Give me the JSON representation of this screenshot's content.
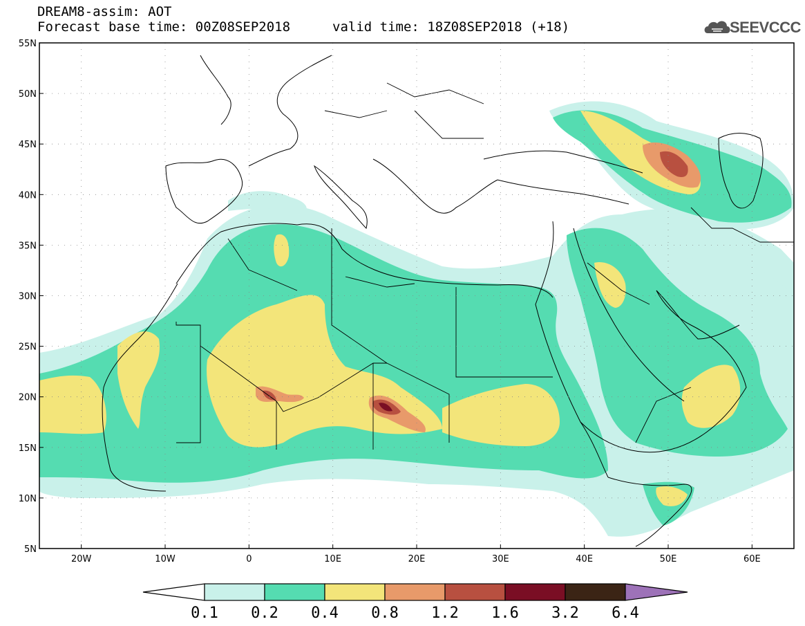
{
  "header": {
    "title": "DREAM8-assim: AOT",
    "base_time": "Forecast base time: 00Z08SEP2018",
    "valid_time": "valid time: 18Z08SEP2018 (+18)",
    "logo_text": "SEEVCCC"
  },
  "map": {
    "lon_range": [
      -25,
      65
    ],
    "lat_range": [
      5,
      55
    ],
    "lat_ticks": [
      "55N",
      "50N",
      "45N",
      "40N",
      "35N",
      "30N",
      "25N",
      "20N",
      "15N",
      "10N",
      "5N"
    ],
    "lon_ticks": [
      "20W",
      "10W",
      "0",
      "10E",
      "20E",
      "30E",
      "40E",
      "50E",
      "60E"
    ]
  },
  "legend": {
    "levels": [
      "0.1",
      "0.2",
      "0.4",
      "0.8",
      "1.2",
      "1.6",
      "3.2",
      "6.4"
    ],
    "colors": [
      "#ffffff",
      "#c9f1ea",
      "#55dcb1",
      "#f3e57a",
      "#e89a6a",
      "#b85040",
      "#7a0e24",
      "#3b2415",
      "#9d72b8"
    ]
  },
  "colors": {
    "c1": "#c9f1ea",
    "c2": "#55dcb1",
    "c3": "#f3e57a",
    "c4": "#e89a6a",
    "c5": "#b85040",
    "c6": "#7a0e24"
  }
}
